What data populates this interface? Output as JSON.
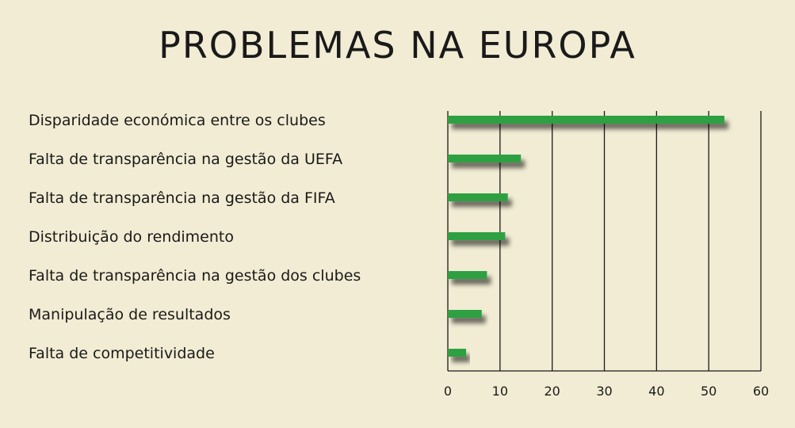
{
  "chart_data": {
    "type": "bar",
    "orientation": "horizontal",
    "title": "PROBLEMAS NA EUROPA",
    "categories": [
      "Disparidade económica entre os clubes",
      "Falta de transparência na gestão da UEFA",
      "Falta de transparência na gestão da FIFA",
      "Distribuição do rendimento",
      "Falta de transparência na gestão dos clubes",
      "Manipulação de resultados",
      "Falta de competitividade"
    ],
    "values": [
      53,
      14,
      11.5,
      11,
      7.5,
      6.5,
      3.5
    ],
    "xlim": [
      0,
      60
    ],
    "xticks": [
      "0",
      "10",
      "20",
      "30",
      "40",
      "50",
      "60"
    ],
    "grid": true,
    "bar_color": "#2ea043",
    "background": "#f1ecd3"
  }
}
